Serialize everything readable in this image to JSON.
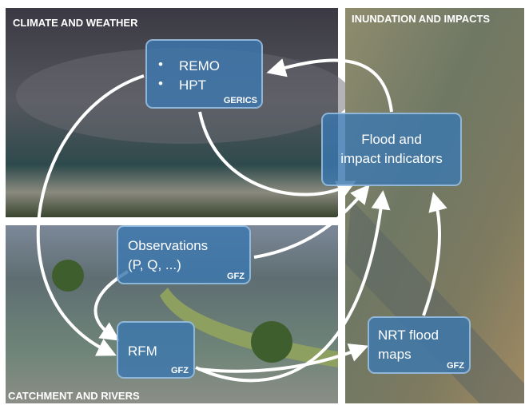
{
  "panels": [
    {
      "label": "CLIMATE AND WEATHER"
    },
    {
      "label": "INUNDATION AND IMPACTS"
    },
    {
      "label": "CATCHMENT AND RIVERS"
    }
  ],
  "nodes": [
    {
      "lines": [
        "REMO",
        "HPT"
      ],
      "source": "GERICS"
    },
    {
      "lines": [
        "Flood and",
        "impact indicators"
      ]
    },
    {
      "lines": [
        "Observations",
        "(P, Q, ...)"
      ],
      "source": "GFZ"
    },
    {
      "lines": [
        "RFM"
      ],
      "source": "GFZ"
    },
    {
      "lines": [
        "NRT flood",
        "maps"
      ],
      "source": "GFZ"
    }
  ]
}
